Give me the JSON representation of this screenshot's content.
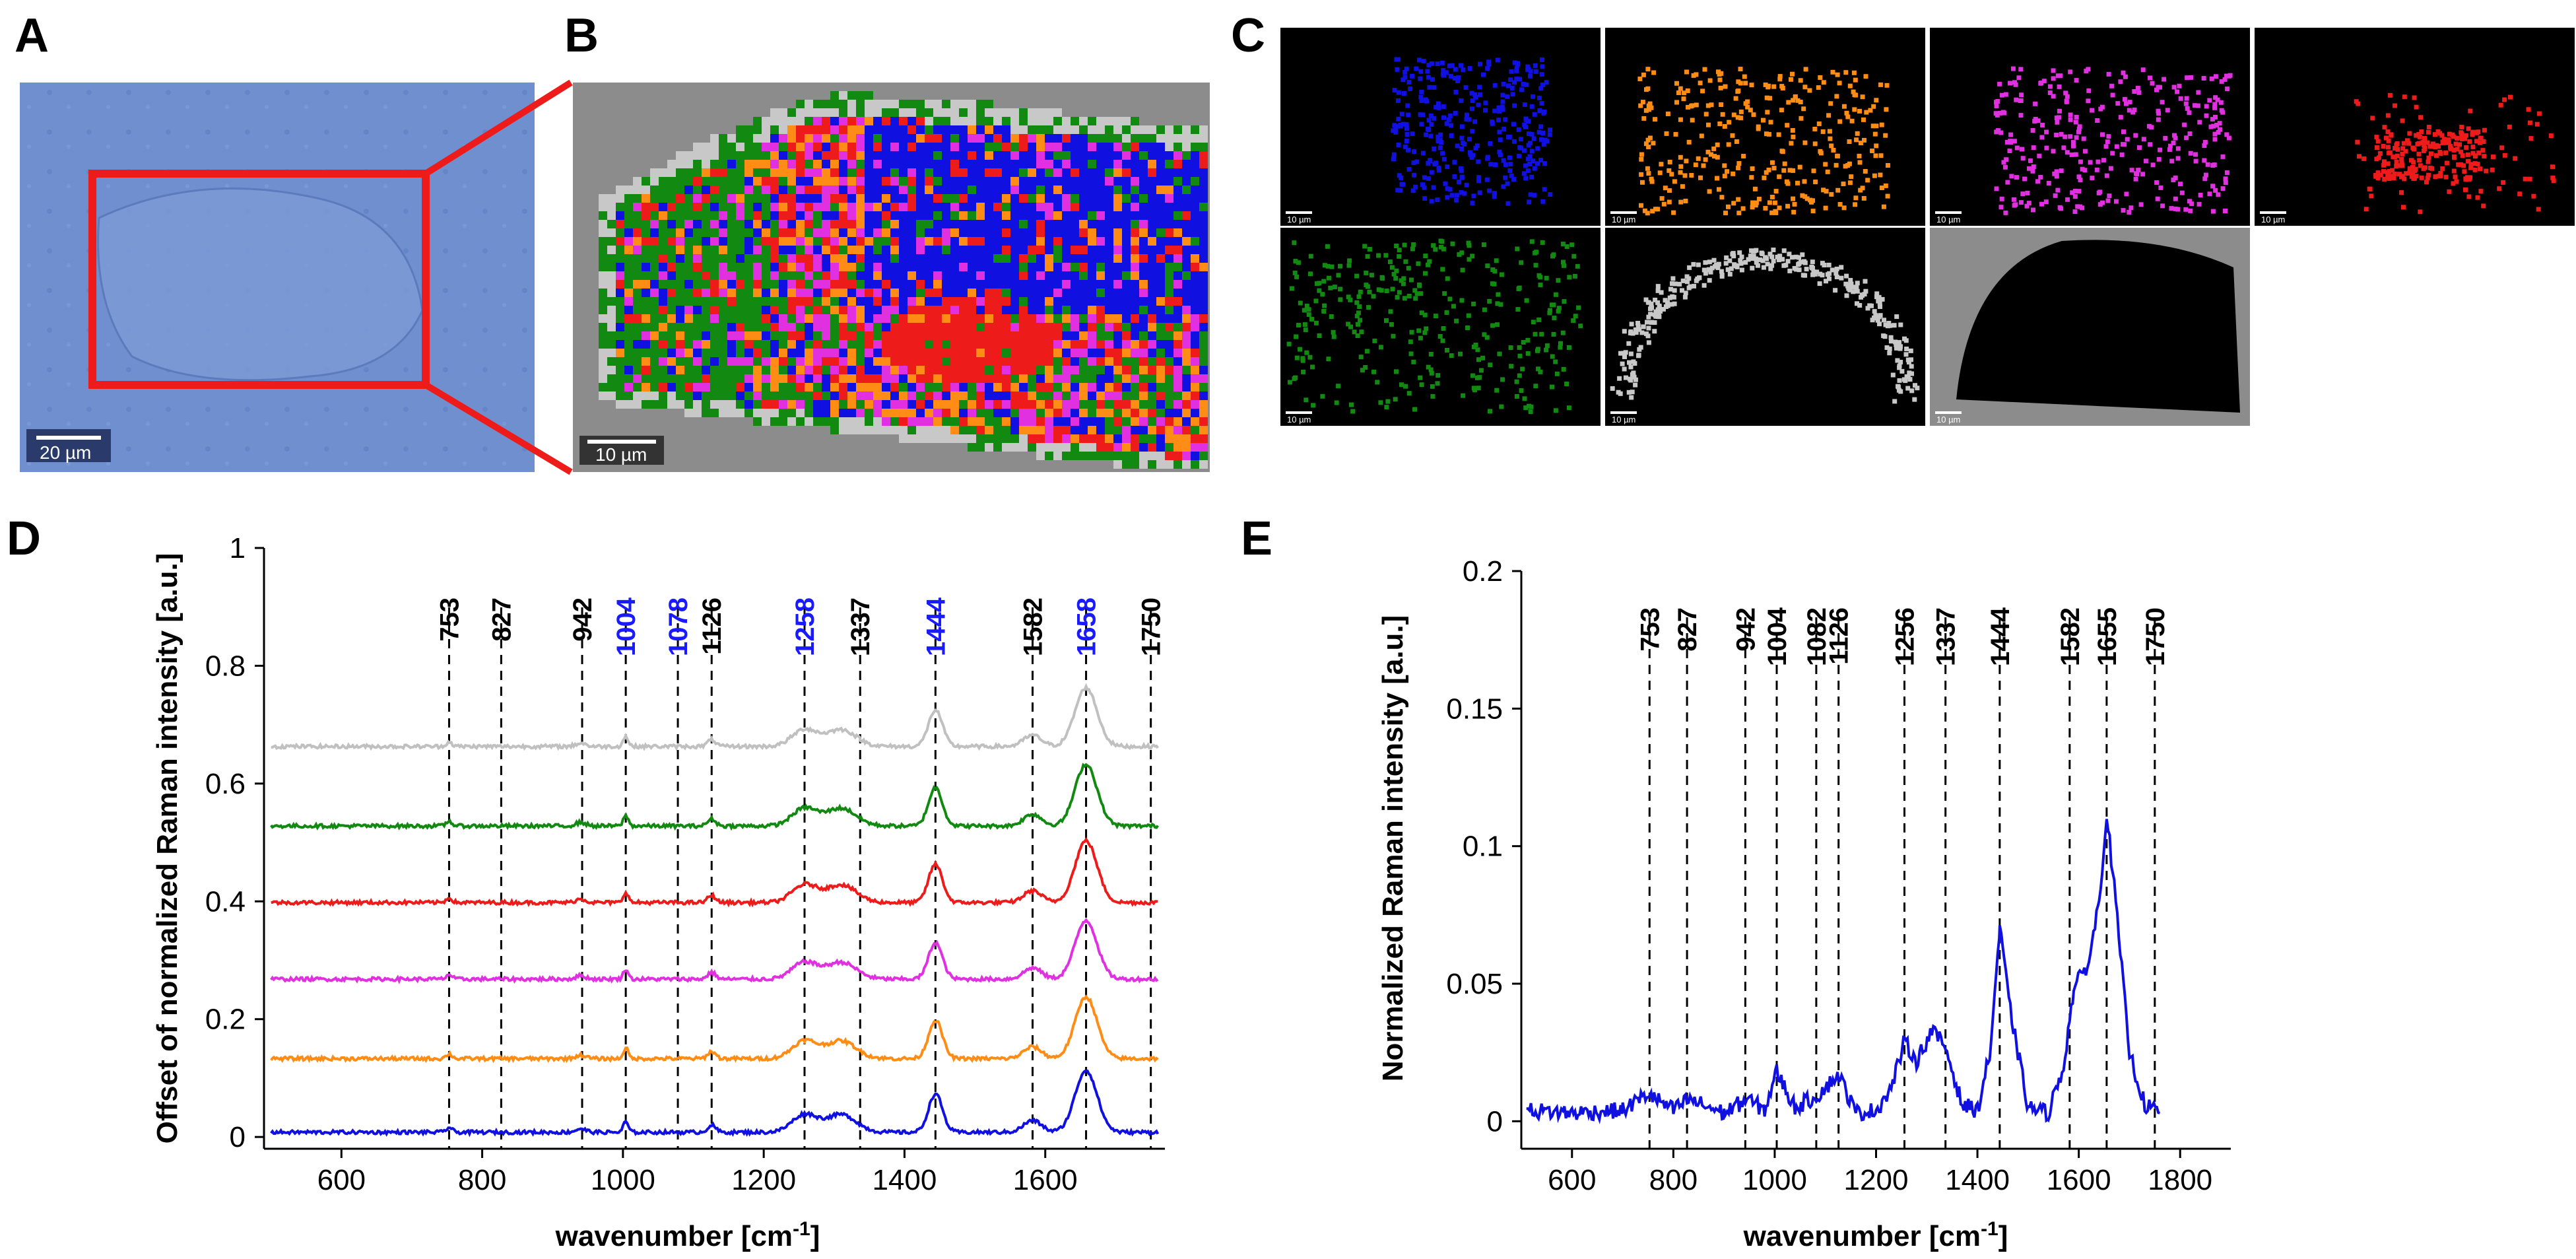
{
  "panel_labels": {
    "A": "A",
    "B": "B",
    "C": "C",
    "D": "D",
    "E": "E"
  },
  "colors": {
    "blue": "#1010e0",
    "orange": "#ff8c14",
    "magenta": "#e030e0",
    "red": "#ee1b1b",
    "green": "#128a12",
    "lightgray": "#c8c8c8",
    "gray": "#8c8c8c",
    "peak_blue": "#1a1aff",
    "peak_black": "#000000",
    "micro_bg": "#6f8fcf"
  },
  "scalebars": {
    "A": "20 µm",
    "B": "10 µm",
    "C": "10 µm"
  },
  "chart_data": [
    {
      "id": "D",
      "type": "line",
      "title": "",
      "xlabel": "wavenumber [cm",
      "xlabel_sup": "-1",
      "xlabel_end": "]",
      "ylabel": "Offset of normalized Raman intensity [a.u.]",
      "xlim": [
        490,
        1770
      ],
      "ylim": [
        -0.02,
        1.0
      ],
      "xticks": [
        600,
        800,
        1000,
        1200,
        1400,
        1600
      ],
      "yticks": [
        0,
        0.2,
        0.4,
        0.6,
        0.8,
        1
      ],
      "ytick_labels": [
        "0",
        "0.2",
        "0.4",
        "0.6",
        "0.8",
        "1"
      ],
      "peaks": [
        {
          "label": "753",
          "x": 753,
          "color": "black"
        },
        {
          "label": "827",
          "x": 827,
          "color": "black"
        },
        {
          "label": "942",
          "x": 942,
          "color": "black"
        },
        {
          "label": "1004",
          "x": 1004,
          "color": "blue"
        },
        {
          "label": "1078",
          "x": 1078,
          "color": "blue"
        },
        {
          "label": "1126",
          "x": 1126,
          "color": "black"
        },
        {
          "label": "1258",
          "x": 1258,
          "color": "blue"
        },
        {
          "label": "1337",
          "x": 1337,
          "color": "black"
        },
        {
          "label": "1444",
          "x": 1444,
          "color": "blue"
        },
        {
          "label": "1582",
          "x": 1582,
          "color": "black"
        },
        {
          "label": "1658",
          "x": 1658,
          "color": "blue"
        },
        {
          "label": "1750",
          "x": 1750,
          "color": "black"
        }
      ],
      "series": [
        {
          "name": "blue cluster",
          "color": "#1010e0",
          "offset": 0.0,
          "scale": 1.0
        },
        {
          "name": "orange cluster",
          "color": "#ff8c14",
          "offset": 0.125,
          "scale": 1.0
        },
        {
          "name": "magenta cluster",
          "color": "#e030e0",
          "offset": 0.26,
          "scale": 0.95
        },
        {
          "name": "red cluster",
          "color": "#ee1b1b",
          "offset": 0.39,
          "scale": 1.0
        },
        {
          "name": "green cluster",
          "color": "#128a12",
          "offset": 0.52,
          "scale": 1.0
        },
        {
          "name": "gray cluster",
          "color": "#c0c0c0",
          "offset": 0.655,
          "scale": 0.95
        }
      ]
    },
    {
      "id": "E",
      "type": "line",
      "title": "",
      "xlabel": "wavenumber [cm",
      "xlabel_sup": "-1",
      "xlabel_end": "]",
      "ylabel": "Normalized Raman intensity [a.u.]",
      "xlim": [
        500,
        1900
      ],
      "ylim": [
        -0.01,
        0.2
      ],
      "xticks": [
        600,
        800,
        1000,
        1200,
        1400,
        1600,
        1800
      ],
      "yticks": [
        0,
        0.05,
        0.1,
        0.15,
        0.2
      ],
      "ytick_labels": [
        "0",
        "0.05",
        "0.1",
        "0.15",
        "0.2"
      ],
      "peaks": [
        {
          "label": "753",
          "x": 753
        },
        {
          "label": "827",
          "x": 827
        },
        {
          "label": "942",
          "x": 942
        },
        {
          "label": "1004",
          "x": 1004
        },
        {
          "label": "1082",
          "x": 1082
        },
        {
          "label": "1126",
          "x": 1126
        },
        {
          "label": "1256",
          "x": 1256
        },
        {
          "label": "1337",
          "x": 1337
        },
        {
          "label": "1444",
          "x": 1444
        },
        {
          "label": "1582",
          "x": 1582
        },
        {
          "label": "1655",
          "x": 1655
        },
        {
          "label": "1750",
          "x": 1750
        }
      ],
      "series": [
        {
          "name": "difference spectrum",
          "color": "#1010e0",
          "x": [
            510,
            600,
            700,
            750,
            800,
            830,
            900,
            945,
            980,
            1004,
            1040,
            1082,
            1126,
            1160,
            1200,
            1230,
            1256,
            1280,
            1310,
            1337,
            1370,
            1400,
            1425,
            1444,
            1465,
            1500,
            1540,
            1570,
            1590,
            1620,
            1640,
            1655,
            1670,
            1700,
            1730,
            1760
          ],
          "y": [
            0.004,
            0.003,
            0.004,
            0.01,
            0.004,
            0.008,
            0.003,
            0.008,
            0.004,
            0.018,
            0.005,
            0.009,
            0.017,
            0.003,
            0.004,
            0.012,
            0.029,
            0.022,
            0.033,
            0.027,
            0.006,
            0.004,
            0.025,
            0.07,
            0.04,
            0.005,
            0.003,
            0.02,
            0.048,
            0.058,
            0.08,
            0.112,
            0.085,
            0.025,
            0.006,
            0.003
          ]
        }
      ]
    }
  ]
}
